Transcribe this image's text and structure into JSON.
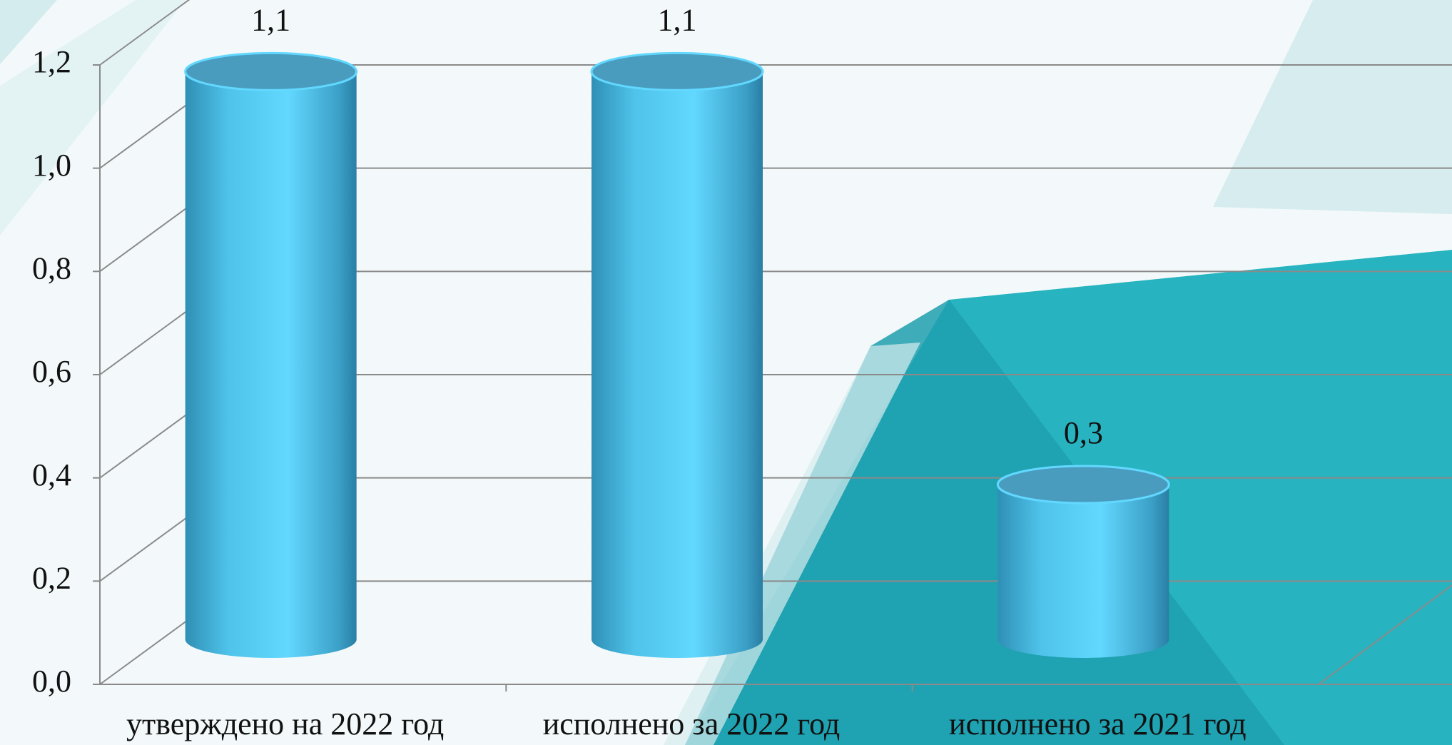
{
  "chart_data": {
    "type": "bar3d",
    "categories": [
      "утверждено на 2022 год",
      "исполнено за 2022 год",
      "исполнено за 2021 год"
    ],
    "values": [
      1.1,
      1.1,
      0.3
    ],
    "value_labels": [
      "1,1",
      "1,1",
      "0,3"
    ],
    "color": "#4fc6ea",
    "ylim": [
      0,
      1.2
    ],
    "yticks": [
      {
        "value": 0,
        "label": "0,0"
      },
      {
        "value": 0.2,
        "label": "0,2"
      },
      {
        "value": 0.4,
        "label": "0,4"
      },
      {
        "value": 0.6,
        "label": "0,6"
      },
      {
        "value": 0.8,
        "label": "0,8"
      },
      {
        "value": 1.0,
        "label": "1,0"
      },
      {
        "value": 1.2,
        "label": "1,2"
      }
    ],
    "grid": true
  }
}
